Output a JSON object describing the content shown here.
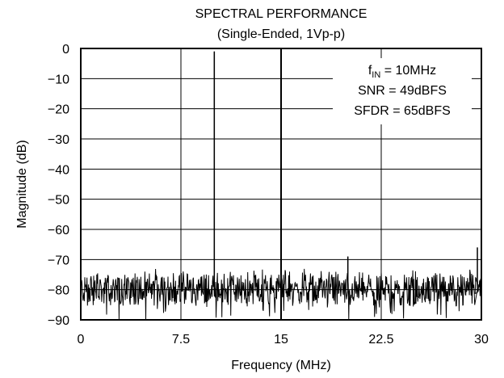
{
  "chart_data": {
    "type": "line",
    "title": "SPECTRAL PERFORMANCE",
    "subtitle": "(Single-Ended, 1Vp-p)",
    "xlabel": "Frequency (MHz)",
    "ylabel": "Magnitude (dB)",
    "xlim": [
      0,
      30
    ],
    "ylim": [
      -90,
      0
    ],
    "x_ticks": [
      "0",
      "7.5",
      "15",
      "22.5",
      "30"
    ],
    "x_tick_values": [
      0,
      7.5,
      15,
      22.5,
      30
    ],
    "y_ticks": [
      "0",
      "−10",
      "−20",
      "−30",
      "−40",
      "−50",
      "−60",
      "−70",
      "−80",
      "−90"
    ],
    "y_tick_values": [
      0,
      -10,
      -20,
      -30,
      -40,
      -50,
      -60,
      -70,
      -80,
      -90
    ],
    "grid": true,
    "noise_floor_db": -80,
    "spikes": [
      {
        "x": 10,
        "y": -1
      },
      {
        "x": 20,
        "y": -69
      },
      {
        "x": 29.7,
        "y": -66
      }
    ],
    "annotations": {
      "fin_symbol": "f",
      "fin_sub": "IN",
      "fin_value": " = 10MHz",
      "snr": "SNR = 49dBFS",
      "sfdr": "SFDR = 65dBFS",
      "placement": "top-right"
    },
    "colors": {
      "trace": "#000000",
      "grid": "#000000",
      "background": "#ffffff"
    }
  }
}
